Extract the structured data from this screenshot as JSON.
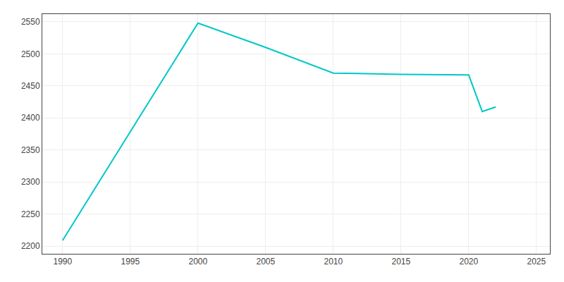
{
  "chart_data": {
    "type": "line",
    "x": [
      1990,
      2000,
      2005,
      2010,
      2015,
      2020,
      2021,
      2022
    ],
    "values": [
      2209,
      2548,
      2510,
      2470,
      2468,
      2467,
      2410,
      2417
    ],
    "color": "#00C8C8",
    "xlim": [
      1988.5,
      2026
    ],
    "ylim": [
      2188,
      2562
    ],
    "xticks": [
      1990,
      1995,
      2000,
      2005,
      2010,
      2015,
      2020,
      2025
    ],
    "yticks": [
      2200,
      2250,
      2300,
      2350,
      2400,
      2450,
      2500,
      2550
    ],
    "grid": true
  }
}
